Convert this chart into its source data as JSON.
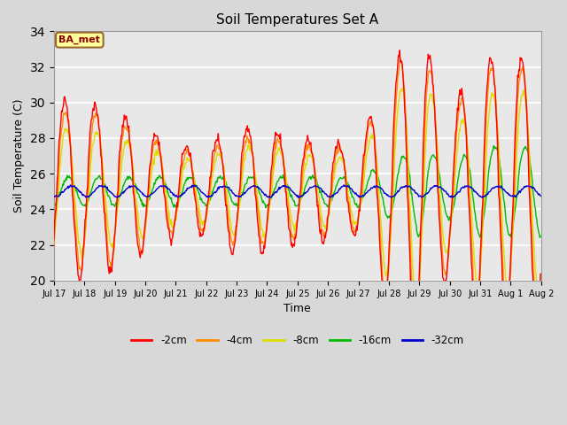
{
  "title": "Soil Temperatures Set A",
  "xlabel": "Time",
  "ylabel": "Soil Temperature (C)",
  "annotation": "BA_met",
  "ylim": [
    20,
    34
  ],
  "yticks": [
    20,
    22,
    24,
    26,
    28,
    30,
    32,
    34
  ],
  "colors": {
    "-2cm": "#ff0000",
    "-4cm": "#ff8c00",
    "-8cm": "#dddd00",
    "-16cm": "#00bb00",
    "-32cm": "#0000cc"
  },
  "bg_outer": "#d8d8d8",
  "bg_inner": "#e8e8e8",
  "n_days": 16,
  "start_day": 17,
  "pts_per_day": 48
}
